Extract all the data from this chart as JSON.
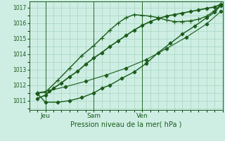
{
  "bg_color": "#ceeee4",
  "line_color": "#1a5c1a",
  "grid_color": "#9ecfb8",
  "axis_color": "#1a5c1a",
  "xlabel": "Pression niveau de la mer( hPa )",
  "xtick_labels": [
    "Jeu",
    "Sam",
    "Ven"
  ],
  "ylim": [
    1010.4,
    1017.4
  ],
  "yticks": [
    1011,
    1012,
    1013,
    1014,
    1015,
    1016,
    1017
  ],
  "xlim_hours": [
    0,
    96
  ],
  "xtick_hours": [
    8,
    32,
    56
  ],
  "vline_hours": [
    8,
    32,
    56
  ],
  "series": [
    {
      "x": [
        4,
        8,
        12,
        16,
        20,
        24,
        28,
        32,
        36,
        40,
        44,
        48,
        52,
        56,
        60,
        64,
        68,
        72,
        76,
        80,
        84,
        88,
        92,
        95
      ],
      "y": [
        1011.15,
        1011.35,
        1011.8,
        1012.15,
        1012.55,
        1012.9,
        1013.35,
        1013.75,
        1014.1,
        1014.5,
        1014.85,
        1015.2,
        1015.55,
        1015.85,
        1016.1,
        1016.3,
        1016.45,
        1016.55,
        1016.65,
        1016.75,
        1016.85,
        1016.95,
        1017.05,
        1017.2
      ],
      "marker": "D",
      "markersize": 2.5,
      "linewidth": 1.2
    },
    {
      "x": [
        4,
        8,
        14,
        20,
        26,
        32,
        36,
        40,
        44,
        48,
        52,
        56,
        60,
        64,
        68,
        72,
        76,
        80,
        84,
        88,
        92,
        95
      ],
      "y": [
        1011.5,
        1011.55,
        1012.3,
        1013.1,
        1013.9,
        1014.55,
        1015.05,
        1015.55,
        1016.0,
        1016.35,
        1016.55,
        1016.5,
        1016.45,
        1016.35,
        1016.2,
        1016.1,
        1016.1,
        1016.15,
        1016.25,
        1016.45,
        1016.8,
        1017.2
      ],
      "marker": "+",
      "markersize": 4,
      "linewidth": 1.0
    },
    {
      "x": [
        4,
        8,
        14,
        20,
        26,
        32,
        36,
        40,
        46,
        52,
        58,
        64,
        70,
        76,
        82,
        88,
        92,
        95
      ],
      "y": [
        1011.45,
        1010.9,
        1010.9,
        1011.0,
        1011.2,
        1011.5,
        1011.8,
        1012.0,
        1012.45,
        1012.85,
        1013.4,
        1014.1,
        1014.7,
        1015.3,
        1015.8,
        1016.35,
        1016.7,
        1017.15
      ],
      "marker": "D",
      "markersize": 2.5,
      "linewidth": 1.0
    },
    {
      "x": [
        4,
        10,
        18,
        28,
        38,
        48,
        58,
        68,
        78,
        88,
        95
      ],
      "y": [
        1011.5,
        1011.65,
        1011.9,
        1012.25,
        1012.65,
        1013.1,
        1013.65,
        1014.35,
        1015.1,
        1015.95,
        1016.75
      ],
      "marker": "D",
      "markersize": 2.5,
      "linewidth": 0.8
    }
  ]
}
